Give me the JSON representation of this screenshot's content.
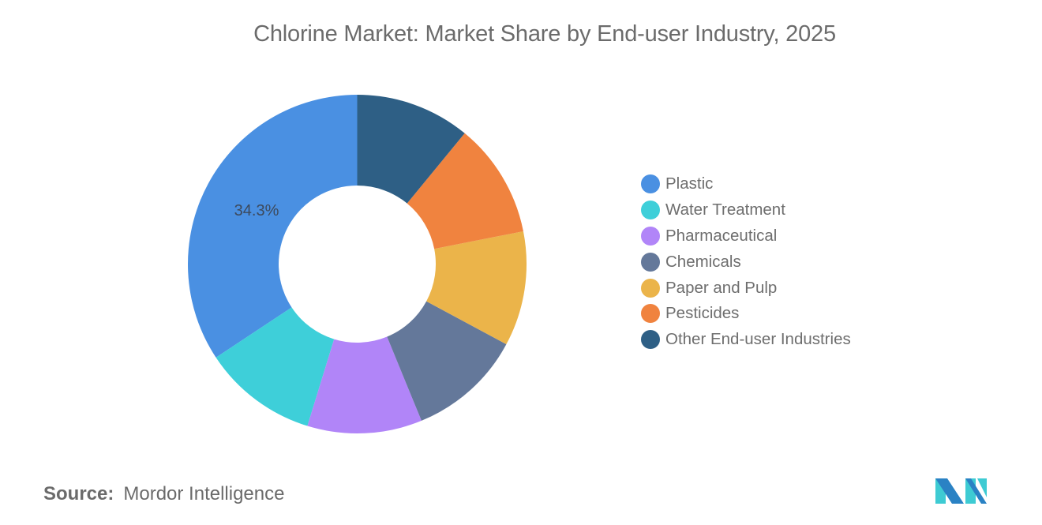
{
  "header": {
    "title": "Chlorine Market: Market Share by End-user Industry, 2025"
  },
  "footer": {
    "source_key": "Source:",
    "source_value": "Mordor Intelligence",
    "logo": "mordor-intelligence-logo"
  },
  "legend": {
    "items": [
      {
        "label": "Plastic",
        "color": "#4a90e2"
      },
      {
        "label": "Water Treatment",
        "color": "#3ecfd9"
      },
      {
        "label": "Pharmaceutical",
        "color": "#b185f8"
      },
      {
        "label": "Chemicals",
        "color": "#64789a"
      },
      {
        "label": "Paper and Pulp",
        "color": "#ebb44a"
      },
      {
        "label": "Pesticides",
        "color": "#f0833f"
      },
      {
        "label": "Other End-user Industries",
        "color": "#2e5f85"
      }
    ]
  },
  "chart_data": {
    "type": "pie",
    "subtype": "donut",
    "title": "Chlorine Market: Market Share by End-user Industry, 2025",
    "categories": [
      "Plastic",
      "Water Treatment",
      "Pharmaceutical",
      "Chemicals",
      "Paper and Pulp",
      "Pesticides",
      "Other End-user Industries"
    ],
    "values": [
      34.3,
      10.95,
      10.95,
      10.95,
      10.95,
      10.95,
      10.95
    ],
    "colors": [
      "#4a90e2",
      "#3ecfd9",
      "#b185f8",
      "#64789a",
      "#ebb44a",
      "#f0833f",
      "#2e5f85"
    ],
    "data_labels": [
      {
        "category": "Plastic",
        "text": "34.3%"
      }
    ],
    "unit": "%",
    "start_angle": "12 o'clock",
    "direction": "counter-clockwise",
    "legend_position": "right",
    "source": "Mordor Intelligence"
  }
}
